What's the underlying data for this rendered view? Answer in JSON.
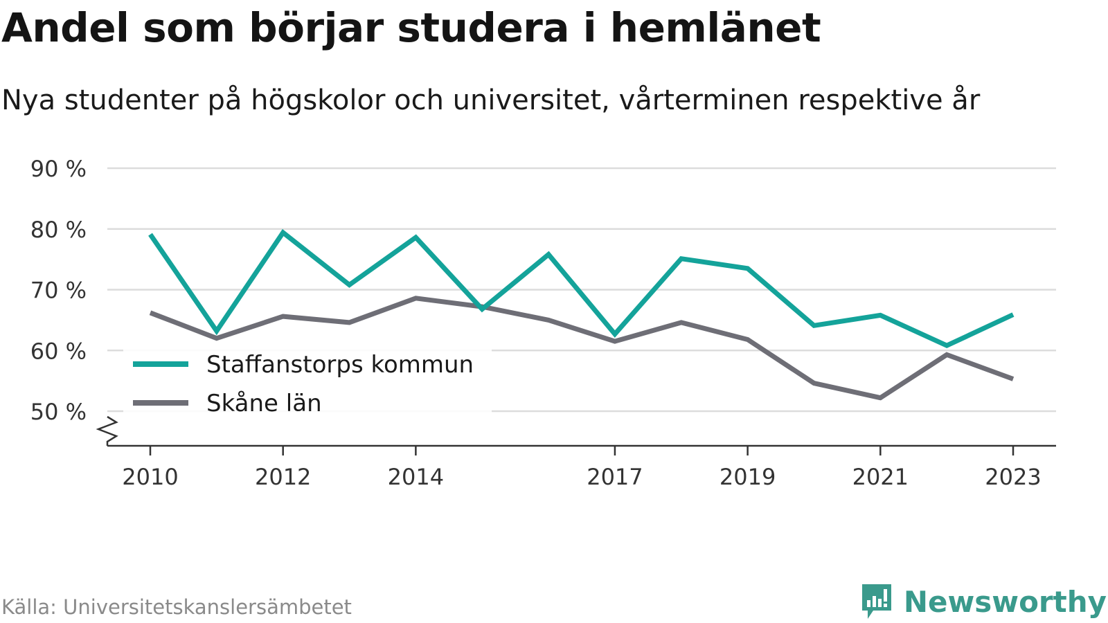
{
  "title": "Andel som börjar studera i hemlänet",
  "subtitle": "Nya studenter på högskolor och universitet, vårterminen respektive år",
  "source": "Källa: Universitetskanslersämbetet",
  "brand": "Newsworthy",
  "colors": {
    "staffanstorp": "#14a39a",
    "skane": "#6e6e76",
    "grid": "#dcdcdc",
    "axis": "#333333",
    "brand": "#3a9a8c"
  },
  "chart_data": {
    "type": "line",
    "title": "Andel som börjar studera i hemlänet",
    "subtitle": "Nya studenter på högskolor och universitet, vårterminen respektive år",
    "x": [
      2010,
      2011,
      2012,
      2013,
      2014,
      2015,
      2016,
      2017,
      2018,
      2019,
      2020,
      2021,
      2022,
      2023
    ],
    "x_tick_labels": [
      "2010",
      "2012",
      "2014",
      "2017",
      "2019",
      "2021",
      "2023"
    ],
    "y_tick_values": [
      50,
      60,
      70,
      80,
      90
    ],
    "y_tick_labels": [
      "50 %",
      "60 %",
      "70 %",
      "80 %",
      "90 %"
    ],
    "ylim": [
      44,
      90
    ],
    "grid": true,
    "legend_position": "bottom-left",
    "series": [
      {
        "name": "Staffanstorps kommun",
        "values": [
          79.1,
          63.2,
          79.4,
          70.8,
          78.6,
          66.8,
          75.8,
          62.7,
          75.1,
          73.5,
          64.1,
          65.8,
          60.8,
          65.9
        ]
      },
      {
        "name": "Skåne län",
        "values": [
          66.2,
          62.0,
          65.6,
          64.6,
          68.6,
          67.2,
          65.0,
          61.5,
          64.6,
          61.8,
          54.6,
          52.2,
          59.3,
          55.3
        ]
      }
    ]
  }
}
